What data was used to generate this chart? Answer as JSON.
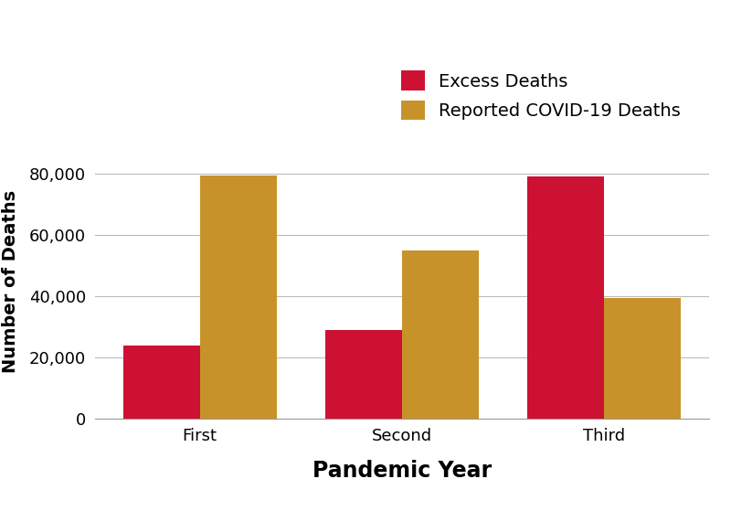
{
  "categories": [
    "First",
    "Second",
    "Third"
  ],
  "excess_deaths": [
    24000,
    29000,
    79000
  ],
  "covid_deaths": [
    79500,
    55000,
    39500
  ],
  "excess_color": "#CC1133",
  "covid_color": "#C8922A",
  "legend_labels": [
    "Excess Deaths",
    "Reported COVID-19 Deaths"
  ],
  "ylabel": "Number of Deaths",
  "xlabel": "Pandemic Year",
  "ylim": [
    0,
    90000
  ],
  "yticks": [
    0,
    20000,
    40000,
    60000,
    80000
  ],
  "bar_width": 0.38,
  "background_color": "#FFFFFF",
  "grid_color": "#BBBBBB",
  "ylabel_fontsize": 14,
  "xlabel_fontsize": 17,
  "tick_fontsize": 13,
  "legend_fontsize": 14
}
